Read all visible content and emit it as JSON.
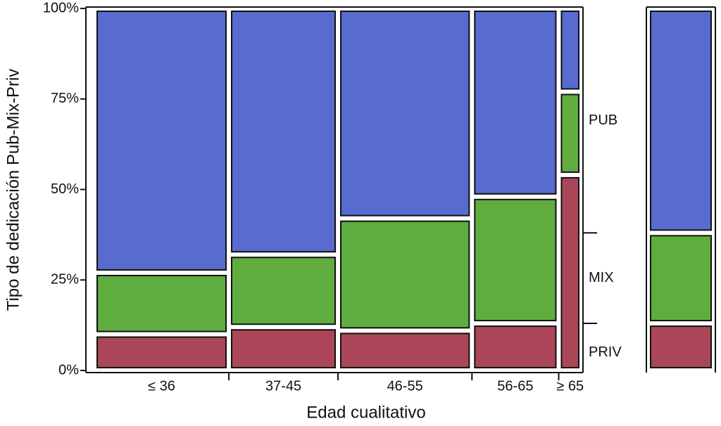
{
  "chart_data": {
    "type": "mosaic",
    "x_label": "Edad cualitativo",
    "y_label": "Tipo de dedicación Pub-Mix-Priv",
    "categories": [
      "≤ 36",
      "37-45",
      "46-55",
      "56-65",
      "≥ 65"
    ],
    "widths": [
      27.6,
      22.4,
      27.5,
      17.8,
      4.7
    ],
    "series": [
      {
        "name": "PRIV",
        "color": "#aa4657",
        "values": [
          10,
          12,
          11,
          13,
          54
        ],
        "total": 13
      },
      {
        "name": "MIX",
        "color": "#5fad3f",
        "values": [
          17,
          20,
          31,
          35,
          23
        ],
        "total": 25
      },
      {
        "name": "PUB",
        "color": "#586bce",
        "values": [
          73,
          68,
          58,
          52,
          23
        ],
        "total": 62
      }
    ],
    "ylim": [
      0,
      100
    ],
    "yticks": [
      {
        "value": 0,
        "label": "0%"
      },
      {
        "value": 25,
        "label": "25%"
      },
      {
        "value": 50,
        "label": "50%"
      },
      {
        "value": 75,
        "label": "75%"
      },
      {
        "value": 100,
        "label": "100%"
      }
    ]
  }
}
